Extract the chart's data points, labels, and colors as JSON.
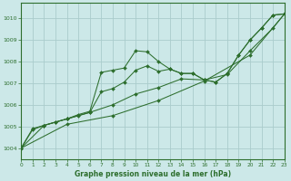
{
  "title": "Graphe pression niveau de la mer (hPa)",
  "bg_color": "#cce8e8",
  "grid_color": "#aacccc",
  "line_color": "#2d6e2d",
  "xlim": [
    0,
    23
  ],
  "ylim": [
    1003.5,
    1010.7
  ],
  "yticks": [
    1004,
    1005,
    1006,
    1007,
    1008,
    1009,
    1010
  ],
  "xticks": [
    0,
    1,
    2,
    3,
    4,
    5,
    6,
    7,
    8,
    9,
    10,
    11,
    12,
    13,
    14,
    15,
    16,
    17,
    18,
    19,
    20,
    21,
    22,
    23
  ],
  "series1": [
    [
      0,
      1004.0
    ],
    [
      1,
      1004.9
    ],
    [
      2,
      1005.05
    ],
    [
      3,
      1005.2
    ],
    [
      4,
      1005.35
    ],
    [
      5,
      1005.55
    ],
    [
      6,
      1005.7
    ],
    [
      7,
      1007.5
    ],
    [
      8,
      1007.6
    ],
    [
      9,
      1007.7
    ],
    [
      10,
      1008.5
    ],
    [
      11,
      1008.45
    ],
    [
      12,
      1008.0
    ],
    [
      13,
      1007.65
    ],
    [
      14,
      1007.45
    ],
    [
      15,
      1007.45
    ],
    [
      16,
      1007.15
    ],
    [
      17,
      1007.05
    ],
    [
      18,
      1007.45
    ],
    [
      19,
      1008.3
    ],
    [
      20,
      1009.0
    ],
    [
      21,
      1009.55
    ],
    [
      22,
      1010.15
    ],
    [
      23,
      1010.2
    ]
  ],
  "series2": [
    [
      0,
      1004.0
    ],
    [
      1,
      1004.85
    ],
    [
      2,
      1005.05
    ],
    [
      3,
      1005.2
    ],
    [
      4,
      1005.35
    ],
    [
      5,
      1005.5
    ],
    [
      6,
      1005.65
    ],
    [
      7,
      1006.6
    ],
    [
      8,
      1006.75
    ],
    [
      9,
      1007.05
    ],
    [
      10,
      1007.6
    ],
    [
      11,
      1007.8
    ],
    [
      12,
      1007.55
    ],
    [
      13,
      1007.65
    ],
    [
      14,
      1007.45
    ],
    [
      15,
      1007.45
    ],
    [
      16,
      1007.15
    ],
    [
      17,
      1007.05
    ],
    [
      18,
      1007.45
    ],
    [
      19,
      1008.3
    ],
    [
      20,
      1009.0
    ],
    [
      21,
      1009.55
    ],
    [
      22,
      1010.15
    ],
    [
      23,
      1010.2
    ]
  ],
  "series3": [
    [
      0,
      1004.0
    ],
    [
      2,
      1005.05
    ],
    [
      4,
      1005.35
    ],
    [
      6,
      1005.65
    ],
    [
      8,
      1006.0
    ],
    [
      10,
      1006.5
    ],
    [
      12,
      1006.8
    ],
    [
      14,
      1007.2
    ],
    [
      16,
      1007.15
    ],
    [
      18,
      1007.4
    ],
    [
      20,
      1008.5
    ],
    [
      22,
      1009.55
    ],
    [
      23,
      1010.2
    ]
  ],
  "series4": [
    [
      0,
      1004.0
    ],
    [
      4,
      1005.1
    ],
    [
      8,
      1005.5
    ],
    [
      12,
      1006.2
    ],
    [
      16,
      1007.1
    ],
    [
      20,
      1008.3
    ],
    [
      23,
      1010.2
    ]
  ]
}
